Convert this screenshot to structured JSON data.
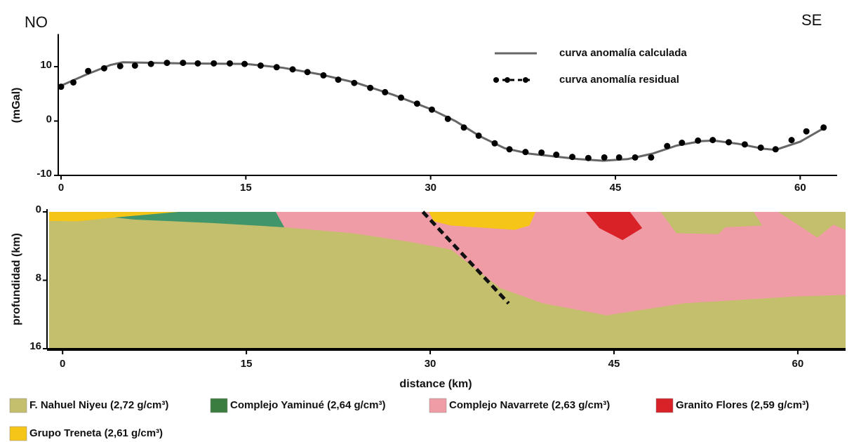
{
  "chart_data": [
    {
      "type": "line",
      "annotations": [
        "NO",
        "SE"
      ],
      "ylabel": "(mGal)",
      "xlim": [
        0,
        63
      ],
      "ylim": [
        -10,
        16
      ],
      "xticks": [
        0,
        15,
        30,
        45,
        60
      ],
      "yticks": [
        -10,
        0,
        10
      ],
      "legend": "upper right",
      "series": [
        {
          "name": "curva anomalía calculada",
          "color": "#666666",
          "style": "line",
          "x": [
            0,
            2,
            4,
            5,
            10,
            15,
            18,
            21,
            24,
            27,
            30,
            32,
            34,
            36,
            38,
            40,
            42,
            44,
            46,
            48,
            50,
            52,
            53,
            55,
            57,
            58,
            60,
            62
          ],
          "values": [
            6.5,
            8.5,
            10.3,
            10.8,
            10.6,
            10.5,
            9.8,
            8.6,
            7,
            4.8,
            2.2,
            0,
            -2.8,
            -5,
            -6,
            -6.5,
            -7,
            -7.3,
            -7,
            -6,
            -4.5,
            -3.7,
            -3.6,
            -4.2,
            -5.1,
            -5.3,
            -3.8,
            -1.2
          ]
        },
        {
          "name": "curva anomalía residual",
          "color": "#000000",
          "style": "dots",
          "x": [
            0,
            1.0,
            2.2,
            3.5,
            4.8,
            6.0,
            7.3,
            8.6,
            9.9,
            11.1,
            12.4,
            13.7,
            14.9,
            16.2,
            17.5,
            18.8,
            20.0,
            21.3,
            22.5,
            23.8,
            25.1,
            26.3,
            27.6,
            28.9,
            30.1,
            31.4,
            32.7,
            33.9,
            35.2,
            36.4,
            37.7,
            39.0,
            40.2,
            41.5,
            42.8,
            44.1,
            45.3,
            46.6,
            47.9,
            49.2,
            50.4,
            51.7,
            52.9,
            54.2,
            55.5,
            56.8,
            58.0,
            59.3,
            60.5,
            61.9
          ],
          "values": [
            6.3,
            7.1,
            9.2,
            9.7,
            10.1,
            10.2,
            10.5,
            10.7,
            10.7,
            10.6,
            10.6,
            10.6,
            10.5,
            10.2,
            9.9,
            9.5,
            9.0,
            8.4,
            7.6,
            7.0,
            6.1,
            5.3,
            4.3,
            3.2,
            2.1,
            0.4,
            -1.2,
            -2.7,
            -4.1,
            -5.2,
            -5.7,
            -5.8,
            -6.2,
            -6.6,
            -6.8,
            -6.7,
            -6.7,
            -6.7,
            -6.7,
            -4.6,
            -4.0,
            -3.6,
            -3.5,
            -3.9,
            -4.3,
            -4.9,
            -5.2,
            -3.5,
            -1.9,
            -1.2
          ]
        }
      ]
    },
    {
      "type": "cross-section",
      "xlabel": "distance (km)",
      "ylabel": "profundidad (km)",
      "xlim": [
        -1.1,
        63.9
      ],
      "ylim": [
        0,
        16
      ],
      "y_inverted": true,
      "xticks": [
        0,
        15,
        30,
        45,
        60
      ],
      "yticks": [
        0,
        8,
        16
      ],
      "units": [
        {
          "name": "F. Nahuel Niyeu (2,72 g/cm³)",
          "color": "#c3bf6c",
          "legend_color": "#c3bf6c",
          "polygons": [
            {
              "x": [
                -1.1,
                63.9,
                63.9,
                -1.1
              ],
              "y": [
                0,
                0,
                16,
                16
              ]
            },
            {
              "x": [
                48.8,
                56.4,
                57.1,
                54.1,
                53.5,
                50.1
              ],
              "y": [
                0,
                0,
                1.6,
                1.8,
                2.6,
                2.5
              ]
            },
            {
              "x": [
                58.4,
                63.9,
                63.9,
                62.9,
                61.6
              ],
              "y": [
                0,
                0,
                2.1,
                1.5,
                3.0
              ]
            }
          ]
        },
        {
          "name": "Complejo Yaminué (2,64 g/cm³)",
          "color": "#40956b",
          "legend_color": "#3a7d3e",
          "polygons": [
            {
              "x": [
                9.4,
                17.4,
                18.1,
                12.2,
                5.9,
                4.2
              ],
              "y": [
                0,
                0,
                1.8,
                1.3,
                0.9,
                0.66
              ]
            }
          ]
        },
        {
          "name": "Complejo Navarrete (2,63 g/cm³)",
          "color": "#f09ca6",
          "legend_color": "#f09ca6",
          "polygons": [
            {
              "x": [
                17.4,
                63.9,
                63.9,
                59.8,
                50.7,
                44.4,
                39.2,
                35.7,
                31.7,
                28.3,
                23.7,
                18.1
              ],
              "y": [
                0,
                0,
                9.7,
                9.9,
                10.7,
                12.1,
                10.7,
                8.9,
                4.4,
                3.5,
                2.5,
                1.8
              ]
            }
          ]
        },
        {
          "name": "Granito Flores (2,59 g/cm³)",
          "color": "#d92128",
          "legend_color": "#d92128",
          "polygons": [
            {
              "x": [
                42.7,
                46.3,
                47.3,
                45.7,
                43.8
              ],
              "y": [
                0,
                0,
                1.9,
                3.3,
                1.9
              ]
            }
          ]
        },
        {
          "name": "Grupo Treneta (2,61 g/cm³)",
          "color": "#f5c518",
          "legend_color": "#f5c518",
          "polygons": [
            {
              "x": [
                -1.1,
                9.4,
                4.2,
                1.3,
                -1.1
              ],
              "y": [
                0,
                0,
                0.66,
                1.1,
                1.07
              ]
            },
            {
              "x": [
                29.9,
                38.6,
                38.1,
                36.9,
                31.7,
                30.3
              ],
              "y": [
                0,
                0,
                1.6,
                2.1,
                1.6,
                1.1
              ]
            }
          ]
        }
      ],
      "fault": {
        "x": [
          29.4,
          36.4
        ],
        "y": [
          0,
          10.7
        ]
      }
    }
  ]
}
